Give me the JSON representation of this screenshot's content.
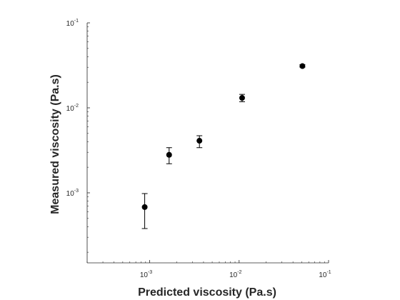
{
  "chart_data": {
    "type": "scatter",
    "title": "",
    "xlabel": "Predicted viscosity (Pa.s)",
    "ylabel": "Measured viscosity (Pa.s)",
    "xscale": "log",
    "yscale": "log",
    "xlim": [
      0.0002,
      0.1
    ],
    "ylim": [
      0.00015,
      0.1
    ],
    "grid": false,
    "legend": "none",
    "x_ticks": [
      {
        "value": 0.001,
        "base": "10",
        "exp": "-3"
      },
      {
        "value": 0.01,
        "base": "10",
        "exp": "-2"
      },
      {
        "value": 0.1,
        "base": "10",
        "exp": "-1"
      }
    ],
    "y_ticks": [
      {
        "value": 0.001,
        "base": "10",
        "exp": "-3"
      },
      {
        "value": 0.01,
        "base": "10",
        "exp": "-2"
      },
      {
        "value": 0.1,
        "base": "10",
        "exp": "-1"
      }
    ],
    "series": [
      {
        "points": [
          {
            "x": 0.00088,
            "y": 0.00068,
            "err_low": 0.00038,
            "err_high": 0.00098
          },
          {
            "x": 0.00165,
            "y": 0.0028,
            "err_low": 0.0022,
            "err_high": 0.0034
          },
          {
            "x": 0.0036,
            "y": 0.0041,
            "err_low": 0.0034,
            "err_high": 0.0047
          },
          {
            "x": 0.0108,
            "y": 0.0131,
            "err_low": 0.0118,
            "err_high": 0.0144
          },
          {
            "x": 0.051,
            "y": 0.031,
            "err_low": 0.0301,
            "err_high": 0.0322
          }
        ]
      }
    ],
    "colors": {
      "marker": "#000000",
      "axis": "#262626",
      "background": "#ffffff"
    }
  }
}
